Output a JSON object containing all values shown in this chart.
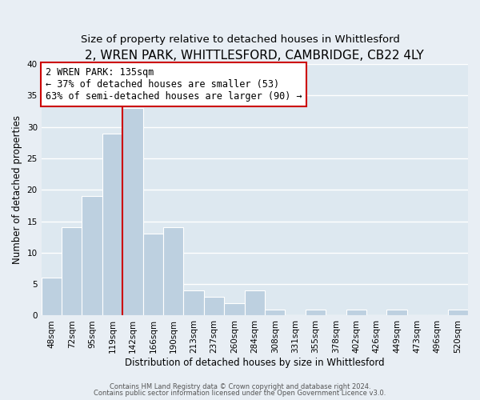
{
  "title": "2, WREN PARK, WHITTLESFORD, CAMBRIDGE, CB22 4LY",
  "subtitle": "Size of property relative to detached houses in Whittlesford",
  "xlabel": "Distribution of detached houses by size in Whittlesford",
  "ylabel": "Number of detached properties",
  "footer_line1": "Contains HM Land Registry data © Crown copyright and database right 2024.",
  "footer_line2": "Contains public sector information licensed under the Open Government Licence v3.0.",
  "bar_labels": [
    "48sqm",
    "72sqm",
    "95sqm",
    "119sqm",
    "142sqm",
    "166sqm",
    "190sqm",
    "213sqm",
    "237sqm",
    "260sqm",
    "284sqm",
    "308sqm",
    "331sqm",
    "355sqm",
    "378sqm",
    "402sqm",
    "426sqm",
    "449sqm",
    "473sqm",
    "496sqm",
    "520sqm"
  ],
  "bar_values": [
    6,
    14,
    19,
    29,
    33,
    13,
    14,
    4,
    3,
    2,
    4,
    1,
    0,
    1,
    0,
    1,
    0,
    1,
    0,
    0,
    1
  ],
  "bar_color": "#bdd0e0",
  "bar_edge_color": "#bdd0e0",
  "ylim": [
    0,
    40
  ],
  "yticks": [
    0,
    5,
    10,
    15,
    20,
    25,
    30,
    35,
    40
  ],
  "vline_color": "#cc0000",
  "annotation_text": "2 WREN PARK: 135sqm\n← 37% of detached houses are smaller (53)\n63% of semi-detached houses are larger (90) →",
  "annotation_box_color": "#ffffff",
  "annotation_box_edge": "#cc0000",
  "background_color": "#e8eef4",
  "plot_bg_color": "#dde8f0",
  "grid_color": "#ffffff",
  "title_fontsize": 11,
  "subtitle_fontsize": 9.5,
  "axis_label_fontsize": 8.5,
  "tick_fontsize": 7.5,
  "annotation_fontsize": 8.5,
  "footer_fontsize": 6.0
}
